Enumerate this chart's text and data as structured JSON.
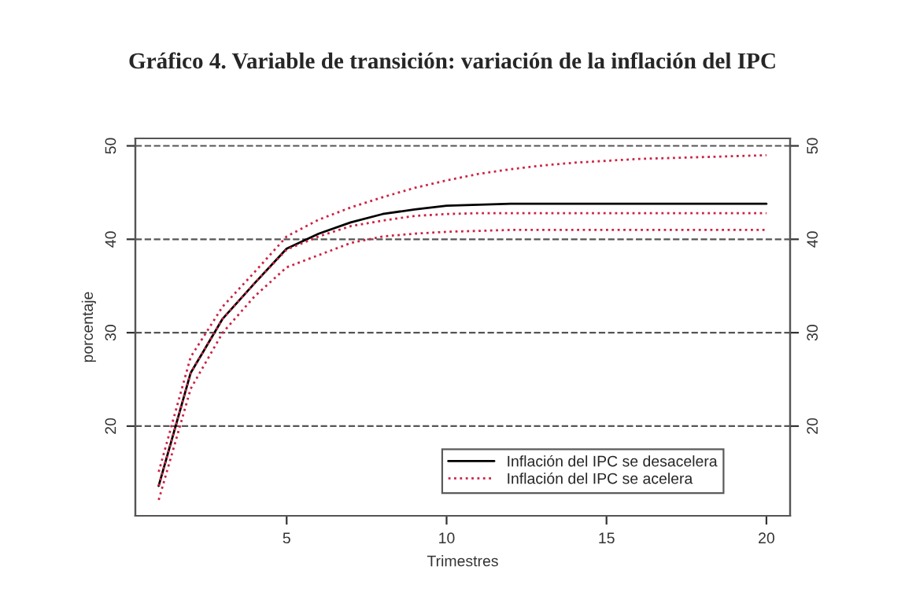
{
  "chart_data": {
    "type": "line",
    "title": "Gráfico 4. Variable de transición: variación de la inflación del IPC",
    "xlabel": "Trimestres",
    "ylabel": "porcentaje",
    "x": [
      1,
      2,
      3,
      4,
      5,
      6,
      7,
      8,
      9,
      10,
      11,
      12,
      13,
      14,
      15,
      16,
      17,
      18,
      19,
      20
    ],
    "series": [
      {
        "name": "Inflación del IPC se desacelera",
        "color": "#000000",
        "line_style": "solid",
        "values": [
          13.6,
          25.7,
          31.5,
          35.3,
          39.0,
          40.6,
          41.8,
          42.7,
          43.2,
          43.6,
          43.7,
          43.8,
          43.8,
          43.8,
          43.8,
          43.8,
          43.8,
          43.8,
          43.8,
          43.8
        ]
      },
      {
        "name": "Inflación del IPC se acelera",
        "color": "#cc2244",
        "line_style": "dotted",
        "values": [
          13.6,
          25.7,
          31.5,
          35.3,
          38.9,
          40.3,
          41.4,
          42.0,
          42.5,
          42.7,
          42.8,
          42.8,
          42.8,
          42.8,
          42.8,
          42.8,
          42.8,
          42.8,
          42.8,
          42.8
        ]
      },
      {
        "color": "#cc2244",
        "line_style": "dotted",
        "values": [
          15.1,
          27.4,
          32.8,
          36.5,
          40.3,
          42.1,
          43.4,
          44.5,
          45.5,
          46.3,
          47.0,
          47.5,
          47.9,
          48.2,
          48.4,
          48.6,
          48.7,
          48.8,
          48.9,
          49.0
        ]
      },
      {
        "color": "#cc2244",
        "line_style": "dotted",
        "values": [
          12.1,
          24.0,
          30.0,
          33.9,
          37.0,
          38.3,
          39.6,
          40.3,
          40.6,
          40.8,
          40.9,
          41.0,
          41.0,
          41.0,
          41.0,
          41.0,
          41.0,
          41.0,
          41.0,
          41.0
        ]
      }
    ],
    "xlim": [
      0.27,
      20.74
    ],
    "xticks": [
      5,
      10,
      15,
      20
    ],
    "ylim": [
      10.4,
      50.8
    ],
    "yticks": [
      20,
      30,
      40,
      50
    ],
    "y2lim": [
      10.4,
      50.8
    ],
    "y2ticks": [
      20,
      30,
      40,
      50
    ],
    "grid": "y",
    "legend": "bottom right"
  }
}
